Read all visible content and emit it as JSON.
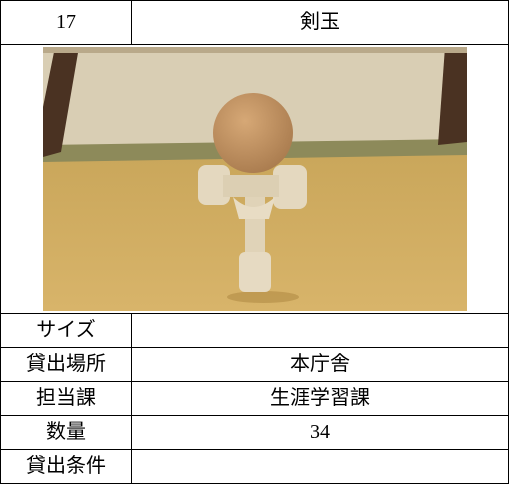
{
  "header": {
    "number": "17",
    "name": "剣玉"
  },
  "rows": [
    {
      "label": "サイズ"
    },
    {
      "label": "貸出場所",
      "value": "本庁舎"
    },
    {
      "label": "担当課",
      "value": "生涯学習課"
    },
    {
      "label": "数量",
      "value": "34"
    },
    {
      "label": "貸出条件"
    }
  ]
}
